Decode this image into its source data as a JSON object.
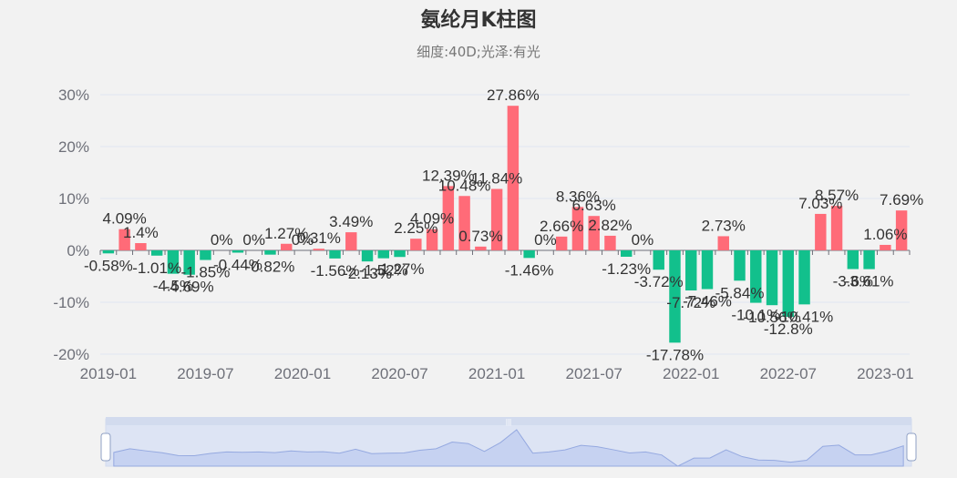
{
  "chart_data": {
    "type": "bar",
    "title": "氨纶月K柱图",
    "subtitle": "细度:40D;光泽:有光",
    "ylim": [
      -20,
      30
    ],
    "yticks": [
      -20,
      -10,
      0,
      10,
      20,
      30
    ],
    "ytick_labels": [
      "-20%",
      "-10%",
      "0%",
      "10%",
      "20%",
      "30%"
    ],
    "xtick_labels": [
      "2019-01",
      "2019-07",
      "2020-01",
      "2020-07",
      "2021-01",
      "2021-07",
      "2022-01",
      "2022-07",
      "2023-01"
    ],
    "categories": [
      "2019-01",
      "2019-02",
      "2019-03",
      "2019-04",
      "2019-05",
      "2019-06",
      "2019-07",
      "2019-08",
      "2019-09",
      "2019-10",
      "2019-11",
      "2019-12",
      "2020-01",
      "2020-02",
      "2020-03",
      "2020-04",
      "2020-05",
      "2020-06",
      "2020-07",
      "2020-08",
      "2020-09",
      "2020-10",
      "2020-11",
      "2020-12",
      "2021-01",
      "2021-02",
      "2021-03",
      "2021-04",
      "2021-05",
      "2021-06",
      "2021-07",
      "2021-08",
      "2021-09",
      "2021-10",
      "2021-11",
      "2021-12",
      "2022-01",
      "2022-02",
      "2022-03",
      "2022-04",
      "2022-05",
      "2022-06",
      "2022-07",
      "2022-08",
      "2022-09",
      "2022-10",
      "2022-11",
      "2022-12",
      "2023-01",
      "2023-02"
    ],
    "values": [
      -0.58,
      4.09,
      1.4,
      -1.01,
      -4.5,
      -4.69,
      -1.85,
      0,
      -0.44,
      0,
      -0.82,
      1.27,
      0,
      0.31,
      -1.56,
      3.49,
      -2.13,
      -1.52,
      -1.27,
      2.25,
      4.09,
      12.39,
      10.48,
      0.73,
      11.84,
      27.86,
      -1.46,
      0,
      2.66,
      8.36,
      6.63,
      2.82,
      -1.23,
      0,
      -3.72,
      -17.78,
      -7.72,
      -7.46,
      2.73,
      -5.84,
      -10.1,
      -10.56,
      -12.8,
      -10.41,
      7.03,
      8.57,
      -3.6,
      -3.61,
      1.06,
      7.69
    ],
    "labels": [
      "-0.58%",
      "4.09%",
      "1.4%",
      "-1.01%",
      "-4.5%",
      "-4.69%",
      "-1.85%",
      "0%",
      "-0.44%",
      "0%",
      "-0.82%",
      "1.27%",
      "0%",
      "0.31%",
      "-1.56%",
      "3.49%",
      "-2.13%",
      "-1.52%",
      "-1.27%",
      "2.25%",
      "4.09%",
      "12.39%",
      "10.48%",
      "0.73%",
      "11.84%",
      "27.86%",
      "-1.46%",
      "0%",
      "2.66%",
      "8.36%",
      "6.63%",
      "2.82%",
      "-1.23%",
      "0%",
      "-3.72%",
      "-17.78%",
      "-7.72%",
      "-7.46%",
      "2.73%",
      "-5.84%",
      "-10.1%",
      "-10.56%",
      "-12.8%",
      "-10.41%",
      "7.03%",
      "8.57%",
      "-3.6%",
      "-3.61%",
      "1.06%",
      "7.69%"
    ],
    "colors": {
      "up": "#ff6b78",
      "down": "#12c08c"
    },
    "grid": true,
    "data_zoom": {
      "start": 0,
      "end": 100,
      "handle_label": "|||"
    }
  }
}
